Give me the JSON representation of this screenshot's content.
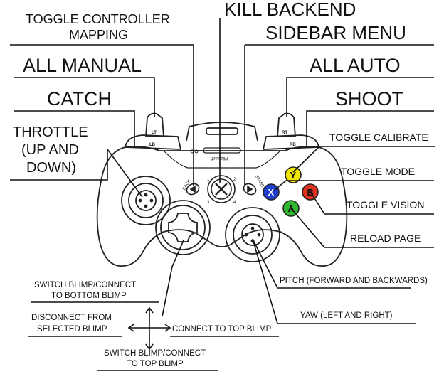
{
  "labels": {
    "toggle_controller_mapping_1": "TOGGLE CONTROLLER",
    "toggle_controller_mapping_2": "MAPPING",
    "kill_backend": "KILL BACKEND",
    "sidebar_menu": "SIDEBAR MENU",
    "all_manual": "ALL MANUAL",
    "all_auto": "ALL AUTO",
    "catch": "CATCH",
    "shoot": "SHOOT",
    "throttle_1": "THROTTLE",
    "throttle_2": "(UP AND",
    "throttle_3": "DOWN)",
    "toggle_calibrate": "TOGGLE CALIBRATE",
    "toggle_mode": "TOGGLE MODE",
    "toggle_vision": "TOGGLE VISION",
    "reload_page": "RELOAD PAGE",
    "pitch": "PITCH (FORWARD AND BACKWARDS)",
    "yaw": "YAW (LEFT AND RIGHT)",
    "dpad_up_1": "SWITCH BLIMP/CONNECT",
    "dpad_up_2": "TO BOTTOM BLIMP",
    "dpad_left_1": "DISCONNECT FROM",
    "dpad_left_2": "SELECTED BLIMP",
    "dpad_right": "CONNECT TO TOP BLIMP",
    "dpad_down_1": "SWITCH BLIMP/CONNECT",
    "dpad_down_2": "TO TOP BLIMP"
  },
  "controller_marks": {
    "lt": "LT",
    "rt": "RT",
    "lb": "LB",
    "rb": "RB",
    "back": "BACK",
    "start": "START",
    "brand": "Microsoft",
    "quadrant_1": "1",
    "quadrant_2": "2",
    "quadrant_3": "3",
    "quadrant_4": "4"
  },
  "buttons": {
    "y": {
      "letter": "Y",
      "color": "#f2e600"
    },
    "x": {
      "letter": "X",
      "color": "#1f3fd1"
    },
    "b": {
      "letter": "B",
      "color": "#e0301e"
    },
    "a": {
      "letter": "A",
      "color": "#2fb52f"
    }
  }
}
